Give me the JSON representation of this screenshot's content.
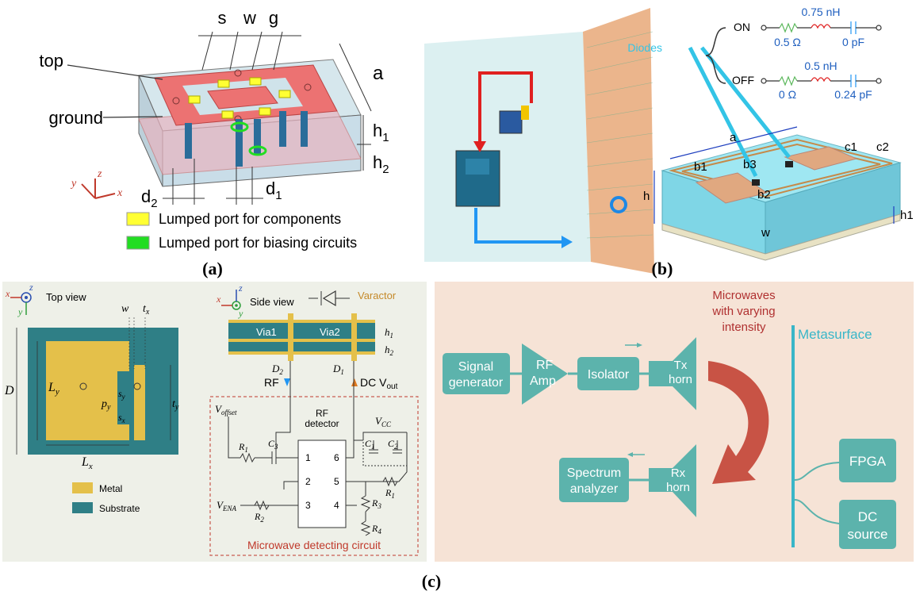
{
  "panel_a": {
    "dims": {
      "s": "s",
      "w": "w",
      "g": "g",
      "a": "a",
      "h1": "h",
      "h1_sub": "1",
      "h2": "h",
      "h2_sub": "2",
      "d2": "d",
      "d2_sub": "2",
      "d1": "d",
      "d1_sub": "1"
    },
    "labels": {
      "top": "top",
      "ground": "ground"
    },
    "axes": {
      "y": "y",
      "z": "z",
      "x": "x"
    },
    "legend": [
      {
        "label": "Lumped port for components",
        "color": "#ffff33"
      },
      {
        "label": "Lumped port for biasing circuits",
        "color": "#22dd22"
      }
    ],
    "caption": "(a)"
  },
  "panel_b": {
    "states": {
      "on": "ON",
      "off": "OFF"
    },
    "on_values": {
      "l": "0.75 nH",
      "r": "0.5 Ω",
      "c": "0 pF"
    },
    "off_values": {
      "l": "0.5 nH",
      "r": "0 Ω",
      "c": "0.24 pF"
    },
    "diodes_label": "Diodes",
    "dims": {
      "a": "a",
      "c1": "c1",
      "c2": "c2",
      "b1": "b1",
      "b3": "b3",
      "b2": "b2",
      "h": "h",
      "h1": "h1",
      "w": "w"
    },
    "caption": "(b)"
  },
  "panel_c_left": {
    "top_view": "Top view",
    "side_view": "Side view",
    "axes": {
      "x": "x",
      "y": "y",
      "z": "z"
    },
    "dims": {
      "w": "w",
      "tx": "t",
      "tx_sub": "x",
      "ty": "t",
      "ty_sub": "y",
      "D": "D",
      "Ly": "L",
      "Ly_sub": "y",
      "Lx": "L",
      "Lx_sub": "x",
      "py": "p",
      "py_sub": "y",
      "sy": "s",
      "sy_sub": "y",
      "sx": "s",
      "sx_sub": "x",
      "h1": "h",
      "h1_sub": "1",
      "h2": "h",
      "h2_sub": "2",
      "D1": "D",
      "D1_sub": "1",
      "D2": "D",
      "D2_sub": "2"
    },
    "legend": [
      {
        "label": "Metal",
        "color": "#e4c04a"
      },
      {
        "label": "Substrate",
        "color": "#2f7f86"
      }
    ],
    "varactor": "Varactor",
    "via1": "Via1",
    "via2": "Via2",
    "rf": "RF",
    "dc_vout": "DC V",
    "dc_vout_sub": "out",
    "v_offset": "V",
    "v_offset_sub": "offset",
    "v_ena": "V",
    "v_ena_sub": "ENA",
    "vcc": "V",
    "vcc_sub": "CC",
    "components": {
      "R1": "R",
      "R2": "R",
      "R3": "R",
      "R4": "R",
      "R1b": "R",
      "C1": "C",
      "C2": "C",
      "C3": "C"
    },
    "component_subs": {
      "R1": "1",
      "R2": "2",
      "R3": "3",
      "R4": "4",
      "R1b": "1",
      "C1": "1",
      "C2": "2",
      "C3": "3"
    },
    "detector": {
      "title1": "RF",
      "title2": "detector",
      "pins": [
        "1",
        "2",
        "3",
        "4",
        "5",
        "6"
      ]
    },
    "circuit_title": "Microwave detecting circuit"
  },
  "panel_c_right": {
    "blocks": {
      "signal_generator": [
        "Signal",
        "generator"
      ],
      "rf_amp": [
        "RF",
        "Amp"
      ],
      "isolator": [
        "Isolator"
      ],
      "tx_horn": [
        "Tx",
        "horn"
      ],
      "rx_horn": [
        "Rx",
        "horn"
      ],
      "spectrum_analyzer": [
        "Spectrum",
        "analyzer"
      ],
      "fpga": [
        "FPGA"
      ],
      "dc_source": [
        "DC",
        "source"
      ]
    },
    "microwaves_label": [
      "Microwaves",
      "with varying",
      "intensity"
    ],
    "metasurface_label": "Metasurface",
    "colors": {
      "block": "#5cb3ac",
      "background": "#f6e3d6",
      "arrow": "#c0392b",
      "line": "#39b6c8"
    }
  },
  "caption_c": "(c)"
}
